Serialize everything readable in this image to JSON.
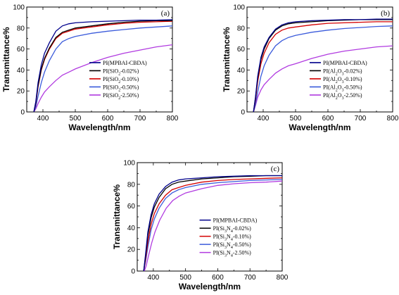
{
  "chart_data": [
    {
      "type": "line",
      "panel_label": "(a)",
      "xlabel": "Wavelength/nm",
      "ylabel": "Transmittance%",
      "xlim": [
        350,
        800
      ],
      "ylim": [
        0,
        100
      ],
      "xticks": [
        400,
        500,
        600,
        700,
        800
      ],
      "yticks": [
        0,
        20,
        40,
        60,
        80,
        100
      ],
      "legend_position": "bottom-right",
      "series": [
        {
          "name": "PI(MPBAI-CBDA)",
          "name_parts": [
            {
              "t": "PI(MPBAI-CBDA)"
            }
          ],
          "color": "#00008B",
          "x": [
            372,
            378,
            385,
            395,
            405,
            420,
            440,
            460,
            480,
            500,
            550,
            600,
            650,
            700,
            750,
            800
          ],
          "y": [
            0,
            10,
            28,
            45,
            56,
            66,
            77,
            82,
            84,
            85,
            86,
            86.5,
            87,
            87.5,
            87.5,
            88
          ]
        },
        {
          "name": "PI(SiO2-0.02%)",
          "name_parts": [
            {
              "t": "PI(SiO"
            },
            {
              "t": "2",
              "sub": true
            },
            {
              "t": "-0.02%)"
            }
          ],
          "color": "#000000",
          "x": [
            372,
            378,
            385,
            395,
            405,
            420,
            440,
            460,
            480,
            500,
            550,
            600,
            650,
            700,
            750,
            800
          ],
          "y": [
            0,
            9,
            25,
            41,
            51,
            61,
            71,
            76,
            78,
            80,
            82,
            84,
            85.5,
            86.5,
            87,
            87
          ]
        },
        {
          "name": "PI(SiO2-0.10%)",
          "name_parts": [
            {
              "t": "PI(SiO"
            },
            {
              "t": "2",
              "sub": true
            },
            {
              "t": "-0.10%)"
            }
          ],
          "color": "#D40000",
          "x": [
            372,
            378,
            385,
            395,
            405,
            420,
            440,
            460,
            480,
            500,
            550,
            600,
            650,
            700,
            750,
            800
          ],
          "y": [
            0,
            8,
            24,
            40,
            50,
            60,
            70,
            75,
            77,
            79,
            81,
            83,
            84.5,
            85.5,
            86,
            86.5
          ]
        },
        {
          "name": "PI(SiO2-0.50%)",
          "name_parts": [
            {
              "t": "PI(SiO"
            },
            {
              "t": "2",
              "sub": true
            },
            {
              "t": "-0.50%)"
            }
          ],
          "color": "#3B5BDB",
          "x": [
            372,
            378,
            385,
            395,
            405,
            420,
            440,
            460,
            480,
            500,
            550,
            600,
            650,
            700,
            750,
            800
          ],
          "y": [
            0,
            5,
            15,
            28,
            38,
            49,
            60,
            67,
            70,
            72,
            75,
            77,
            78.5,
            80,
            81,
            82
          ]
        },
        {
          "name": "PI(SiO2-2.50%)",
          "name_parts": [
            {
              "t": "PI(SiO"
            },
            {
              "t": "2",
              "sub": true
            },
            {
              "t": "-2.50%)"
            }
          ],
          "color": "#B13BE0",
          "x": [
            372,
            378,
            385,
            395,
            405,
            420,
            440,
            460,
            480,
            500,
            550,
            600,
            650,
            700,
            750,
            800
          ],
          "y": [
            0,
            3,
            8,
            14,
            19,
            24,
            30,
            35,
            38,
            41,
            47,
            52,
            56,
            59,
            62,
            64
          ]
        }
      ]
    },
    {
      "type": "line",
      "panel_label": "(b)",
      "xlabel": "Wavelength/nm",
      "ylabel": "Transmittance%",
      "xlim": [
        350,
        800
      ],
      "ylim": [
        0,
        100
      ],
      "xticks": [
        400,
        500,
        600,
        700,
        800
      ],
      "yticks": [
        0,
        20,
        40,
        60,
        80,
        100
      ],
      "legend_position": "bottom-right",
      "series": [
        {
          "name": "PI(MPBAI-CBDA)",
          "name_parts": [
            {
              "t": "PI(MPBAI-CBDA)"
            }
          ],
          "color": "#00008B",
          "x": [
            370,
            376,
            383,
            393,
            403,
            418,
            438,
            458,
            478,
            500,
            550,
            600,
            650,
            700,
            750,
            800
          ],
          "y": [
            0,
            14,
            34,
            52,
            62,
            71,
            79,
            83,
            85,
            86,
            87,
            87.5,
            88,
            88,
            88.5,
            88.5
          ]
        },
        {
          "name": "PI(Al2O3-0.02%)",
          "name_parts": [
            {
              "t": "PI(Al"
            },
            {
              "t": "2",
              "sub": true
            },
            {
              "t": "O"
            },
            {
              "t": "3",
              "sub": true
            },
            {
              "t": "-0.02%)"
            }
          ],
          "color": "#000000",
          "x": [
            370,
            376,
            383,
            393,
            403,
            418,
            438,
            458,
            478,
            500,
            550,
            600,
            650,
            700,
            750,
            800
          ],
          "y": [
            0,
            13,
            32,
            50,
            60,
            70,
            78,
            82,
            84,
            85,
            86,
            87,
            87.5,
            88,
            88,
            88
          ]
        },
        {
          "name": "PI(Al2O3-0.10%)",
          "name_parts": [
            {
              "t": "PI(Al"
            },
            {
              "t": "2",
              "sub": true
            },
            {
              "t": "O"
            },
            {
              "t": "3",
              "sub": true
            },
            {
              "t": "-0.10%)"
            }
          ],
          "color": "#D40000",
          "x": [
            370,
            376,
            383,
            393,
            403,
            418,
            438,
            458,
            478,
            500,
            550,
            600,
            650,
            700,
            750,
            800
          ],
          "y": [
            0,
            11,
            29,
            46,
            56,
            66,
            74,
            78,
            80,
            81,
            83,
            84.5,
            85,
            85.5,
            86,
            86
          ]
        },
        {
          "name": "PI(Al2O3-0.50%)",
          "name_parts": [
            {
              "t": "PI(Al"
            },
            {
              "t": "2",
              "sub": true
            },
            {
              "t": "O"
            },
            {
              "t": "3",
              "sub": true
            },
            {
              "t": "-0.50%)"
            }
          ],
          "color": "#3B5BDB",
          "x": [
            370,
            376,
            383,
            393,
            403,
            418,
            438,
            458,
            478,
            500,
            550,
            600,
            650,
            700,
            750,
            800
          ],
          "y": [
            0,
            7,
            19,
            34,
            44,
            54,
            63,
            68,
            71,
            73,
            76,
            78,
            79.5,
            80.5,
            81.5,
            82
          ]
        },
        {
          "name": "PI(Al2O3-2.50%)",
          "name_parts": [
            {
              "t": "PI(Al"
            },
            {
              "t": "2",
              "sub": true
            },
            {
              "t": "O"
            },
            {
              "t": "3",
              "sub": true
            },
            {
              "t": "-2.50%)"
            }
          ],
          "color": "#B13BE0",
          "x": [
            370,
            376,
            383,
            393,
            403,
            418,
            438,
            458,
            478,
            500,
            550,
            600,
            650,
            700,
            750,
            800
          ],
          "y": [
            0,
            6,
            14,
            21,
            26,
            31,
            37,
            41,
            44,
            46,
            51,
            55,
            58,
            60,
            62,
            63
          ]
        }
      ]
    },
    {
      "type": "line",
      "panel_label": "(c)",
      "xlabel": "Wavelength/nm",
      "ylabel": "Transmittance%",
      "xlim": [
        350,
        800
      ],
      "ylim": [
        0,
        100
      ],
      "xticks": [
        400,
        500,
        600,
        700,
        800
      ],
      "yticks": [
        0,
        20,
        40,
        60,
        80,
        100
      ],
      "legend_position": "bottom-right",
      "series": [
        {
          "name": "PI(MPBAI-CBDA)",
          "name_parts": [
            {
              "t": "PI(MPBAI-CBDA)"
            }
          ],
          "color": "#00008B",
          "x": [
            370,
            376,
            383,
            393,
            403,
            418,
            438,
            458,
            478,
            500,
            550,
            600,
            650,
            700,
            750,
            800
          ],
          "y": [
            0,
            16,
            36,
            52,
            62,
            71,
            78,
            82,
            84,
            85,
            86,
            87,
            87.5,
            88,
            88,
            88
          ]
        },
        {
          "name": "PI(Si3N4-0.02%)",
          "name_parts": [
            {
              "t": "PI(Si"
            },
            {
              "t": "3",
              "sub": true
            },
            {
              "t": "N"
            },
            {
              "t": "4",
              "sub": true
            },
            {
              "t": "-0.02%)"
            }
          ],
          "color": "#000000",
          "x": [
            370,
            376,
            383,
            393,
            403,
            418,
            438,
            458,
            478,
            500,
            550,
            600,
            650,
            700,
            750,
            800
          ],
          "y": [
            0,
            14,
            33,
            49,
            59,
            68,
            76,
            80,
            82,
            83,
            85,
            86,
            87,
            87.5,
            88,
            88
          ]
        },
        {
          "name": "PI(Si3N4-0.10%)",
          "name_parts": [
            {
              "t": "PI(Si"
            },
            {
              "t": "3",
              "sub": true
            },
            {
              "t": "N"
            },
            {
              "t": "4",
              "sub": true
            },
            {
              "t": "-0.10%)"
            }
          ],
          "color": "#D40000",
          "x": [
            370,
            376,
            383,
            393,
            403,
            418,
            438,
            458,
            478,
            500,
            550,
            600,
            650,
            700,
            750,
            800
          ],
          "y": [
            0,
            11,
            27,
            43,
            53,
            62,
            70,
            75,
            77,
            79,
            82,
            83.5,
            84.5,
            85,
            85.5,
            86
          ]
        },
        {
          "name": "PI(Si3N4-0.50%)",
          "name_parts": [
            {
              "t": "PI(Si"
            },
            {
              "t": "3",
              "sub": true
            },
            {
              "t": "N"
            },
            {
              "t": "4",
              "sub": true
            },
            {
              "t": "-0.50%)"
            }
          ],
          "color": "#3B5BDB",
          "x": [
            370,
            376,
            383,
            393,
            403,
            418,
            438,
            458,
            478,
            500,
            550,
            600,
            650,
            700,
            750,
            800
          ],
          "y": [
            0,
            9,
            22,
            38,
            48,
            58,
            67,
            72,
            75,
            77,
            80,
            81.5,
            82.5,
            83.5,
            84,
            84.5
          ]
        },
        {
          "name": "PI(Si3N4-2.50%)",
          "name_parts": [
            {
              "t": "PI(Si"
            },
            {
              "t": "3",
              "sub": true
            },
            {
              "t": "N"
            },
            {
              "t": "4",
              "sub": true
            },
            {
              "t": "-2.50%)"
            }
          ],
          "color": "#B13BE0",
          "x": [
            372,
            378,
            385,
            395,
            405,
            420,
            440,
            460,
            480,
            500,
            550,
            600,
            650,
            700,
            750,
            800
          ],
          "y": [
            0,
            5,
            14,
            26,
            36,
            47,
            58,
            65,
            69,
            72,
            76,
            79,
            80.5,
            81.5,
            82,
            83
          ]
        }
      ]
    }
  ]
}
